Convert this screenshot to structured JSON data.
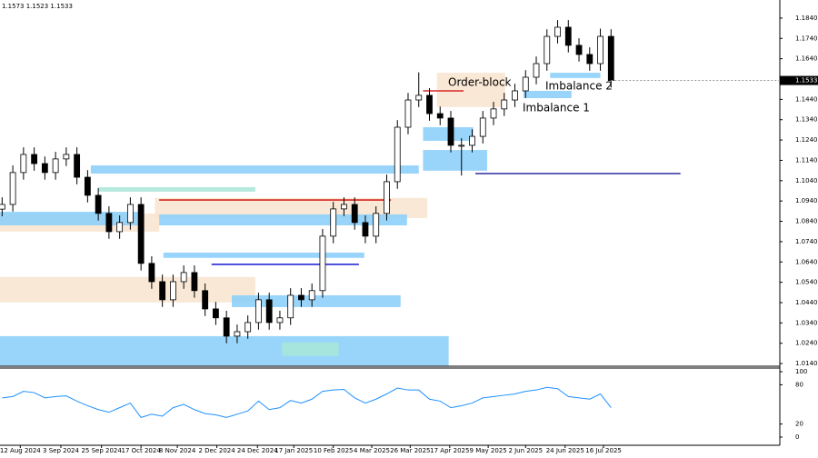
{
  "chart_data": {
    "type": "candlestick",
    "header": "1.1573 1.1523 1.1533",
    "xlim": [
      -0.2,
      72.8
    ],
    "ylim": [
      1.0127,
      1.1929
    ],
    "xticks": [
      {
        "value": 1.7,
        "label": "12 Aug 2024"
      },
      {
        "value": 5.5,
        "label": "3 Sep 2024"
      },
      {
        "value": 9.3,
        "label": "25 Sep 2024"
      },
      {
        "value": 13.0,
        "label": "17 Oct 2024"
      },
      {
        "value": 16.4,
        "label": "8 Nov 2024"
      },
      {
        "value": 20.1,
        "label": "2 Dec 2024"
      },
      {
        "value": 23.9,
        "label": "24 Dec 2024"
      },
      {
        "value": 27.3,
        "label": "17 Jan 2025"
      },
      {
        "value": 31.0,
        "label": "10 Feb 2025"
      },
      {
        "value": 34.6,
        "label": "4 Mar 2025"
      },
      {
        "value": 38.2,
        "label": "26 Mar 2025"
      },
      {
        "value": 41.9,
        "label": "17 Apr 2025"
      },
      {
        "value": 45.5,
        "label": "9 May 2025"
      },
      {
        "value": 49.0,
        "label": "2 Jun 2025"
      },
      {
        "value": 52.7,
        "label": "24 Jun 2025"
      },
      {
        "value": 56.3,
        "label": "16 Jul 2025"
      }
    ],
    "yticks": [
      {
        "value": 1.184,
        "label": "1.1840"
      },
      {
        "value": 1.174,
        "label": "1.1740"
      },
      {
        "value": 1.164,
        "label": "1.1640"
      },
      {
        "value": 1.144,
        "label": "1.1440"
      },
      {
        "value": 1.134,
        "label": "1.1340"
      },
      {
        "value": 1.124,
        "label": "1.1240"
      },
      {
        "value": 1.114,
        "label": "1.1140"
      },
      {
        "value": 1.104,
        "label": "1.1040"
      },
      {
        "value": 1.094,
        "label": "1.0940"
      },
      {
        "value": 1.084,
        "label": "1.0840"
      },
      {
        "value": 1.074,
        "label": "1.0740"
      },
      {
        "value": 1.064,
        "label": "1.0640"
      },
      {
        "value": 1.054,
        "label": "1.0540"
      },
      {
        "value": 1.044,
        "label": "1.0440"
      },
      {
        "value": 1.034,
        "label": "1.0340"
      },
      {
        "value": 1.024,
        "label": "1.0240"
      },
      {
        "value": 1.014,
        "label": "1.0140"
      }
    ],
    "open": [
      1.09,
      1.0923,
      1.108,
      1.1169,
      1.1124,
      1.108,
      1.1147,
      1.1169,
      1.1057,
      1.0968,
      1.0879,
      1.0789,
      1.0834,
      1.0923,
      1.0633,
      1.0543,
      1.0454,
      1.0543,
      1.0588,
      1.0499,
      1.0409,
      1.0365,
      1.0275,
      1.0297,
      1.0342,
      1.0454,
      1.0342,
      1.0365,
      1.0476,
      1.0454,
      1.0499,
      1.0767,
      1.0901,
      1.0923,
      1.0834,
      1.0767,
      1.0879,
      1.1035,
      1.1303,
      1.1437,
      1.146,
      1.137,
      1.1348,
      1.1214,
      1.1214,
      1.1258,
      1.1348,
      1.1393,
      1.1437,
      1.1482,
      1.1549,
      1.1616,
      1.175,
      1.1795,
      1.1706,
      1.1661,
      1.1616,
      1.175
    ],
    "high": [
      1.0958,
      1.1115,
      1.1204,
      1.1204,
      1.1159,
      1.1182,
      1.1204,
      1.1204,
      1.1092,
      1.1003,
      1.0914,
      1.0869,
      1.0958,
      1.0958,
      1.0668,
      1.0578,
      1.0578,
      1.0623,
      1.0623,
      1.0534,
      1.0444,
      1.04,
      1.0332,
      1.0377,
      1.0489,
      1.0489,
      1.04,
      1.0511,
      1.0511,
      1.0534,
      1.0802,
      1.0936,
      1.0958,
      1.0958,
      1.0869,
      1.0914,
      1.107,
      1.1338,
      1.1472,
      1.1573,
      1.1495,
      1.1405,
      1.1383,
      1.1249,
      1.1293,
      1.1383,
      1.1428,
      1.1472,
      1.1517,
      1.1584,
      1.1651,
      1.1785,
      1.183,
      1.183,
      1.1741,
      1.1696,
      1.1788,
      1.1785
    ],
    "low": [
      1.0865,
      1.0888,
      1.1045,
      1.1089,
      1.1045,
      1.1045,
      1.1112,
      1.1022,
      1.0933,
      1.0844,
      1.0754,
      1.0754,
      1.0799,
      1.0598,
      1.0508,
      1.0419,
      1.0419,
      1.0508,
      1.0464,
      1.0374,
      1.033,
      1.024,
      1.024,
      1.0262,
      1.0307,
      1.0307,
      1.0307,
      1.033,
      1.0419,
      1.0419,
      1.0464,
      1.0732,
      1.0866,
      1.0799,
      1.0732,
      1.0732,
      1.0844,
      1.1,
      1.1268,
      1.1402,
      1.1335,
      1.1313,
      1.1179,
      1.1065,
      1.1179,
      1.1223,
      1.1313,
      1.1358,
      1.1402,
      1.1447,
      1.1514,
      1.1581,
      1.1715,
      1.1671,
      1.1626,
      1.1581,
      1.1581,
      1.1498
    ],
    "close": [
      1.0923,
      1.108,
      1.1169,
      1.1124,
      1.108,
      1.1147,
      1.1169,
      1.1057,
      1.0968,
      1.0879,
      1.0789,
      1.0834,
      1.0923,
      1.0633,
      1.0543,
      1.0454,
      1.0543,
      1.0588,
      1.0499,
      1.0409,
      1.0365,
      1.0275,
      1.0297,
      1.0342,
      1.0454,
      1.0342,
      1.0365,
      1.0476,
      1.0454,
      1.0499,
      1.0767,
      1.0901,
      1.0923,
      1.0834,
      1.0767,
      1.0879,
      1.1035,
      1.1303,
      1.1437,
      1.146,
      1.137,
      1.1348,
      1.1214,
      1.1214,
      1.1258,
      1.1348,
      1.1393,
      1.1437,
      1.1482,
      1.1549,
      1.1616,
      1.175,
      1.1795,
      1.1706,
      1.1661,
      1.1616,
      1.175,
      1.1533
    ],
    "zones": [
      {
        "x0": -0.2,
        "x1": 14.7,
        "ylow": 1.0789,
        "yhigh": 1.0878,
        "color": "#f8e4cf"
      },
      {
        "x0": -0.2,
        "x1": 12.8,
        "ylow": 1.082,
        "yhigh": 1.0887,
        "color": "#87cefa"
      },
      {
        "x0": 14.3,
        "x1": 39.8,
        "ylow": 1.0856,
        "yhigh": 1.0955,
        "color": "#f8e4cf"
      },
      {
        "x0": 14.7,
        "x1": 37.9,
        "ylow": 1.082,
        "yhigh": 1.0874,
        "color": "#87cefa"
      },
      {
        "x0": 8.3,
        "x1": 39.0,
        "ylow": 1.1075,
        "yhigh": 1.1115,
        "color": "#87cefa"
      },
      {
        "x0": 9.0,
        "x1": 23.7,
        "ylow": 1.0986,
        "yhigh": 1.1008,
        "color": "#a8e6d8"
      },
      {
        "x0": 15.1,
        "x1": 33.9,
        "ylow": 1.066,
        "yhigh": 1.0686,
        "color": "#87cefa"
      },
      {
        "x0": -0.2,
        "x1": 23.7,
        "ylow": 1.0441,
        "yhigh": 1.0566,
        "color": "#f8e4cf"
      },
      {
        "x0": 21.5,
        "x1": 37.3,
        "ylow": 1.0418,
        "yhigh": 1.0476,
        "color": "#87cefa"
      },
      {
        "x0": -0.2,
        "x1": 41.8,
        "ylow": 1.013,
        "yhigh": 1.0275,
        "color": "#87cefa"
      },
      {
        "x0": 26.2,
        "x1": 31.5,
        "ylow": 1.0177,
        "yhigh": 1.0244,
        "color": "#a8e6d8"
      },
      {
        "x0": 40.7,
        "x1": 47.1,
        "ylow": 1.1402,
        "yhigh": 1.1571,
        "color": "#f8e4cf"
      },
      {
        "x0": 39.4,
        "x1": 44.1,
        "ylow": 1.1236,
        "yhigh": 1.1303,
        "color": "#87cefa"
      },
      {
        "x0": 39.4,
        "x1": 45.4,
        "ylow": 1.1089,
        "yhigh": 1.1191,
        "color": "#87cefa"
      },
      {
        "x0": 48.8,
        "x1": 53.3,
        "ylow": 1.1446,
        "yhigh": 1.1482,
        "color": "#87cefa"
      },
      {
        "x0": 51.3,
        "x1": 56.0,
        "ylow": 1.1545,
        "yhigh": 1.1571,
        "color": "#87cefa"
      }
    ],
    "levels": [
      {
        "x0": 44.3,
        "x1": 63.5,
        "value": 1.1075,
        "color": "#00008b"
      },
      {
        "x0": 19.6,
        "x1": 33.4,
        "value": 1.0628,
        "color": "#0000cd"
      },
      {
        "x0": 39.4,
        "x1": 43.2,
        "value": 1.1482,
        "color": "#d00000"
      },
      {
        "x0": 14.7,
        "x1": 36.4,
        "value": 1.0945,
        "color": "#d00000"
      }
    ],
    "annotations": [
      "Order-block",
      "Imbalance 2",
      "Imbalance 1"
    ],
    "rsi": {
      "ylim": [
        -12.5,
        105.6
      ],
      "yticks": [
        100,
        80,
        20,
        0
      ],
      "values": [
        60,
        62,
        70,
        68,
        60,
        62,
        63,
        55,
        48,
        42,
        38,
        45,
        52,
        30,
        35,
        32,
        45,
        50,
        42,
        36,
        34,
        30,
        35,
        40,
        55,
        42,
        45,
        56,
        52,
        58,
        70,
        72,
        73,
        60,
        52,
        58,
        66,
        75,
        72,
        72,
        58,
        55,
        45,
        48,
        52,
        60,
        62,
        64,
        66,
        70,
        72,
        76,
        74,
        62,
        60,
        58,
        66,
        45
      ]
    }
  }
}
